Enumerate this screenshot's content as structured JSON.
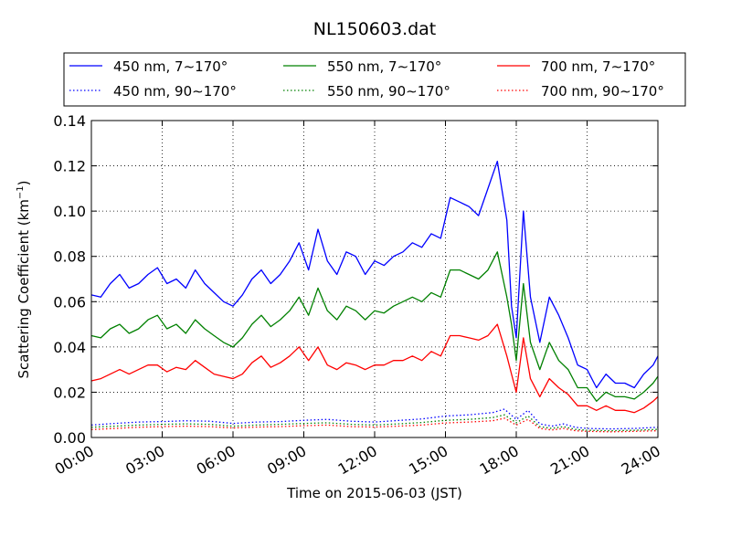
{
  "chart_data": {
    "type": "line",
    "title": "NL150603.dat",
    "xlabel": "Time on 2015-06-03 (JST)",
    "ylabel_main": "Scattering Coefficient (km",
    "ylabel_sup": "−1",
    "ylabel_end": ")",
    "xlim": [
      0,
      24
    ],
    "ylim": [
      0,
      0.14
    ],
    "grid": true,
    "legend_position": "top",
    "x_ticks": [
      0,
      3,
      6,
      9,
      12,
      15,
      18,
      21,
      24
    ],
    "x_tick_labels": [
      "00:00",
      "03:00",
      "06:00",
      "09:00",
      "12:00",
      "15:00",
      "18:00",
      "21:00",
      "24:00"
    ],
    "y_ticks": [
      0,
      0.02,
      0.04,
      0.06,
      0.08,
      0.1,
      0.12,
      0.14
    ],
    "y_tick_labels": [
      "0.00",
      "0.02",
      "0.04",
      "0.06",
      "0.08",
      "0.10",
      "0.12",
      "0.14"
    ],
    "x_unit": "hours since 00:00 JST",
    "series": [
      {
        "name": "450 nm, 7∼170°",
        "color": "#0000ff",
        "style": "solid",
        "x": [
          0.0,
          0.4,
          0.8,
          1.2,
          1.6,
          2.0,
          2.4,
          2.8,
          3.2,
          3.6,
          4.0,
          4.4,
          4.8,
          5.2,
          5.6,
          6.0,
          6.4,
          6.8,
          7.2,
          7.6,
          8.0,
          8.4,
          8.8,
          9.2,
          9.6,
          10.0,
          10.4,
          10.8,
          11.2,
          11.6,
          12.0,
          12.4,
          12.8,
          13.2,
          13.6,
          14.0,
          14.4,
          14.8,
          15.2,
          15.6,
          16.0,
          16.4,
          16.8,
          17.2,
          17.6,
          17.8,
          18.0,
          18.3,
          18.6,
          19.0,
          19.4,
          19.8,
          20.2,
          20.6,
          21.0,
          21.4,
          21.8,
          22.2,
          22.6,
          23.0,
          23.4,
          23.8,
          24.0
        ],
        "y": [
          0.063,
          0.062,
          0.068,
          0.072,
          0.066,
          0.068,
          0.072,
          0.075,
          0.068,
          0.07,
          0.066,
          0.074,
          0.068,
          0.064,
          0.06,
          0.058,
          0.063,
          0.07,
          0.074,
          0.068,
          0.072,
          0.078,
          0.086,
          0.074,
          0.092,
          0.078,
          0.072,
          0.082,
          0.08,
          0.072,
          0.078,
          0.076,
          0.08,
          0.082,
          0.086,
          0.084,
          0.09,
          0.088,
          0.106,
          0.104,
          0.102,
          0.098,
          0.11,
          0.122,
          0.096,
          0.058,
          0.044,
          0.1,
          0.062,
          0.042,
          0.062,
          0.054,
          0.044,
          0.032,
          0.03,
          0.022,
          0.028,
          0.024,
          0.024,
          0.022,
          0.028,
          0.032,
          0.036
        ]
      },
      {
        "name": "450 nm, 90∼170°",
        "color": "#0000ff",
        "style": "dotted",
        "x": [
          0.0,
          1.0,
          2.0,
          3.0,
          4.0,
          5.0,
          6.0,
          7.0,
          8.0,
          9.0,
          10.0,
          11.0,
          12.0,
          13.0,
          14.0,
          15.0,
          16.0,
          17.0,
          17.5,
          18.0,
          18.5,
          19.0,
          19.5,
          20.0,
          20.5,
          21.0,
          22.0,
          23.0,
          24.0
        ],
        "y": [
          0.0055,
          0.0062,
          0.0068,
          0.007,
          0.0074,
          0.0072,
          0.0062,
          0.0068,
          0.007,
          0.0076,
          0.008,
          0.0072,
          0.0068,
          0.0075,
          0.0082,
          0.0095,
          0.01,
          0.011,
          0.0125,
          0.008,
          0.012,
          0.006,
          0.005,
          0.006,
          0.0045,
          0.004,
          0.0038,
          0.004,
          0.0045
        ]
      },
      {
        "name": "550 nm, 7∼170°",
        "color": "#008000",
        "style": "solid",
        "x": [
          0.0,
          0.4,
          0.8,
          1.2,
          1.6,
          2.0,
          2.4,
          2.8,
          3.2,
          3.6,
          4.0,
          4.4,
          4.8,
          5.2,
          5.6,
          6.0,
          6.4,
          6.8,
          7.2,
          7.6,
          8.0,
          8.4,
          8.8,
          9.2,
          9.6,
          10.0,
          10.4,
          10.8,
          11.2,
          11.6,
          12.0,
          12.4,
          12.8,
          13.2,
          13.6,
          14.0,
          14.4,
          14.8,
          15.2,
          15.6,
          16.0,
          16.4,
          16.8,
          17.2,
          17.6,
          17.8,
          18.0,
          18.3,
          18.6,
          19.0,
          19.4,
          19.8,
          20.2,
          20.6,
          21.0,
          21.4,
          21.8,
          22.2,
          22.6,
          23.0,
          23.4,
          23.8,
          24.0
        ],
        "y": [
          0.045,
          0.044,
          0.048,
          0.05,
          0.046,
          0.048,
          0.052,
          0.054,
          0.048,
          0.05,
          0.046,
          0.052,
          0.048,
          0.045,
          0.042,
          0.04,
          0.044,
          0.05,
          0.054,
          0.049,
          0.052,
          0.056,
          0.062,
          0.054,
          0.066,
          0.056,
          0.052,
          0.058,
          0.056,
          0.052,
          0.056,
          0.055,
          0.058,
          0.06,
          0.062,
          0.06,
          0.064,
          0.062,
          0.074,
          0.074,
          0.072,
          0.07,
          0.074,
          0.082,
          0.062,
          0.05,
          0.034,
          0.068,
          0.042,
          0.03,
          0.042,
          0.034,
          0.03,
          0.022,
          0.022,
          0.016,
          0.02,
          0.018,
          0.018,
          0.017,
          0.02,
          0.024,
          0.027
        ]
      },
      {
        "name": "550 nm, 90∼170°",
        "color": "#008000",
        "style": "dotted",
        "x": [
          0.0,
          1.0,
          2.0,
          3.0,
          4.0,
          5.0,
          6.0,
          7.0,
          8.0,
          9.0,
          10.0,
          11.0,
          12.0,
          13.0,
          14.0,
          15.0,
          16.0,
          17.0,
          17.5,
          18.0,
          18.5,
          19.0,
          19.5,
          20.0,
          20.5,
          21.0,
          22.0,
          23.0,
          24.0
        ],
        "y": [
          0.0045,
          0.005,
          0.0055,
          0.0058,
          0.006,
          0.0058,
          0.005,
          0.0055,
          0.0058,
          0.0062,
          0.0065,
          0.0058,
          0.0055,
          0.006,
          0.0066,
          0.0076,
          0.008,
          0.0088,
          0.01,
          0.0065,
          0.0095,
          0.0048,
          0.004,
          0.0048,
          0.0036,
          0.0032,
          0.003,
          0.0032,
          0.0036
        ]
      },
      {
        "name": "700 nm, 7∼170°",
        "color": "#ff0000",
        "style": "solid",
        "x": [
          0.0,
          0.4,
          0.8,
          1.2,
          1.6,
          2.0,
          2.4,
          2.8,
          3.2,
          3.6,
          4.0,
          4.4,
          4.8,
          5.2,
          5.6,
          6.0,
          6.4,
          6.8,
          7.2,
          7.6,
          8.0,
          8.4,
          8.8,
          9.2,
          9.6,
          10.0,
          10.4,
          10.8,
          11.2,
          11.6,
          12.0,
          12.4,
          12.8,
          13.2,
          13.6,
          14.0,
          14.4,
          14.8,
          15.2,
          15.6,
          16.0,
          16.4,
          16.8,
          17.2,
          17.6,
          17.8,
          18.0,
          18.3,
          18.6,
          19.0,
          19.4,
          19.8,
          20.2,
          20.6,
          21.0,
          21.4,
          21.8,
          22.2,
          22.6,
          23.0,
          23.4,
          23.8,
          24.0
        ],
        "y": [
          0.025,
          0.026,
          0.028,
          0.03,
          0.028,
          0.03,
          0.032,
          0.032,
          0.029,
          0.031,
          0.03,
          0.034,
          0.031,
          0.028,
          0.027,
          0.026,
          0.028,
          0.033,
          0.036,
          0.031,
          0.033,
          0.036,
          0.04,
          0.034,
          0.04,
          0.032,
          0.03,
          0.033,
          0.032,
          0.03,
          0.032,
          0.032,
          0.034,
          0.034,
          0.036,
          0.034,
          0.038,
          0.036,
          0.045,
          0.045,
          0.044,
          0.043,
          0.045,
          0.05,
          0.036,
          0.028,
          0.02,
          0.044,
          0.026,
          0.018,
          0.026,
          0.022,
          0.019,
          0.014,
          0.014,
          0.012,
          0.014,
          0.012,
          0.012,
          0.011,
          0.013,
          0.016,
          0.018
        ]
      },
      {
        "name": "700 nm, 90∼170°",
        "color": "#ff0000",
        "style": "dotted",
        "x": [
          0.0,
          1.0,
          2.0,
          3.0,
          4.0,
          5.0,
          6.0,
          7.0,
          8.0,
          9.0,
          10.0,
          11.0,
          12.0,
          13.0,
          14.0,
          15.0,
          16.0,
          17.0,
          17.5,
          18.0,
          18.5,
          19.0,
          19.5,
          20.0,
          20.5,
          21.0,
          22.0,
          23.0,
          24.0
        ],
        "y": [
          0.0035,
          0.004,
          0.0045,
          0.0048,
          0.005,
          0.0048,
          0.0042,
          0.0046,
          0.0048,
          0.0052,
          0.0055,
          0.0048,
          0.0046,
          0.005,
          0.0055,
          0.0064,
          0.0068,
          0.0074,
          0.0085,
          0.0055,
          0.008,
          0.004,
          0.0033,
          0.004,
          0.003,
          0.0027,
          0.0025,
          0.0027,
          0.003
        ]
      }
    ]
  }
}
